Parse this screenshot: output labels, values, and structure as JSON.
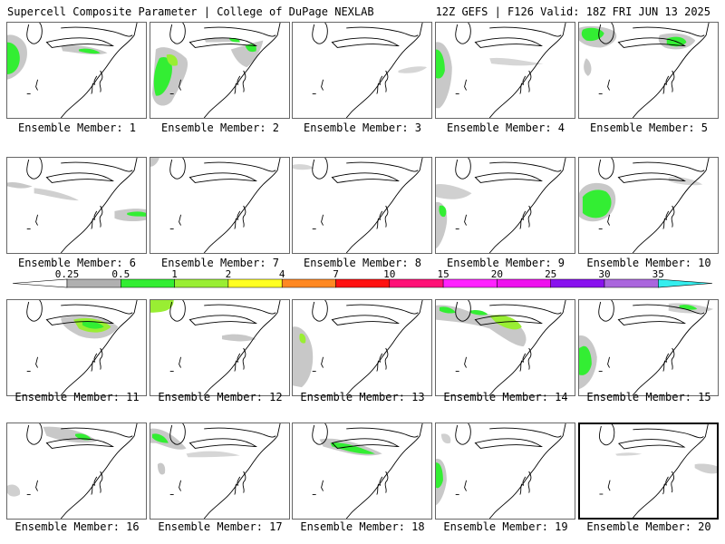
{
  "header": {
    "title": "Supercell Composite Parameter | College of DuPage NEXLAB",
    "valid": "12Z GEFS | F126 Valid: 18Z FRI JUN 13 2025"
  },
  "colorbar": {
    "ticks": [
      "0.25",
      "0.5",
      "1",
      "2",
      "4",
      "7",
      "10",
      "15",
      "20",
      "25",
      "30",
      "35"
    ],
    "colors": [
      "#d0d0d0",
      "#b0b0b0",
      "#33ee33",
      "#99ee33",
      "#ffff22",
      "#ff8822",
      "#ff1111",
      "#ff1177",
      "#ff22ff",
      "#ee11ee",
      "#8811ee",
      "#aa66dd",
      "#33eeee"
    ]
  },
  "members": [
    {
      "label": "Ensemble Member: 1"
    },
    {
      "label": "Ensemble Member: 2"
    },
    {
      "label": "Ensemble Member: 3"
    },
    {
      "label": "Ensemble Member: 4"
    },
    {
      "label": "Ensemble Member: 5"
    },
    {
      "label": "Ensemble Member: 6"
    },
    {
      "label": "Ensemble Member: 7"
    },
    {
      "label": "Ensemble Member: 8"
    },
    {
      "label": "Ensemble Member: 9"
    },
    {
      "label": "Ensemble Member: 10"
    },
    {
      "label": "Ensemble Member: 11"
    },
    {
      "label": "Ensemble Member: 12"
    },
    {
      "label": "Ensemble Member: 13"
    },
    {
      "label": "Ensemble Member: 14"
    },
    {
      "label": "Ensemble Member: 15"
    },
    {
      "label": "Ensemble Member: 16"
    },
    {
      "label": "Ensemble Member: 17"
    },
    {
      "label": "Ensemble Member: 18"
    },
    {
      "label": "Ensemble Member: 19"
    },
    {
      "label": "Ensemble Member: 20"
    }
  ]
}
